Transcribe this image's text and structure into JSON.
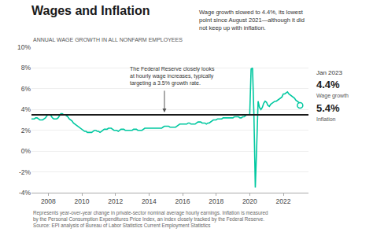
{
  "chart_data": {
    "type": "line",
    "title": "Wages and Inflation",
    "subtitle": "ANNUAL WAGE GROWTH IN ALL NONFARM EMPLOYEES",
    "annotations": [
      "Wage growth slowed to 4.4%, its lowest\npoint since August 2021—although it did\nnot keep up with inflation.",
      "The Federal Reserve closely looks\nat hourly wage increases, typically\ntargeting a 3.5% growth rate.",
      "Jan 2023",
      "4.4%",
      "Wage growth",
      "5.4%",
      "Inflation",
      "Represents year-over-year change in private-sector nominal average hourly earnings. Inflation is measured\nby the Personal Consumption Expenditures Price Index, an index closely tracked by the Federal Reserve.\nSource: EPI analysis of Bureau of Labor Statistics Current Employment Statistics"
    ],
    "reference_line": {
      "value": 3.5,
      "color": "#1a1a1a"
    },
    "xlim": [
      2007.0,
      2023.5
    ],
    "xticks": [
      2008,
      2010,
      2012,
      2014,
      2016,
      2018,
      2020,
      2022
    ],
    "ylim": [
      -4,
      10
    ],
    "yticks": [
      {
        "value": -4,
        "label": "-4%"
      },
      {
        "value": -2,
        "label": "-2%"
      },
      {
        "value": 0,
        "label": "0%"
      },
      {
        "value": 2,
        "label": "2%"
      },
      {
        "value": 4,
        "label": "4%"
      },
      {
        "value": 6,
        "label": "6%"
      },
      {
        "value": 8,
        "label": "8%"
      },
      {
        "value": 10,
        "label": "10%"
      }
    ],
    "grid": true,
    "x": [
      2007.0,
      2007.083,
      2007.167,
      2007.25,
      2007.333,
      2007.417,
      2007.5,
      2007.583,
      2007.667,
      2007.75,
      2007.833,
      2007.917,
      2008.0,
      2008.083,
      2008.167,
      2008.25,
      2008.333,
      2008.417,
      2008.5,
      2008.583,
      2008.667,
      2008.75,
      2008.833,
      2008.917,
      2009.0,
      2009.083,
      2009.167,
      2009.25,
      2009.333,
      2009.417,
      2009.5,
      2009.583,
      2009.667,
      2009.75,
      2009.833,
      2009.917,
      2010.0,
      2010.083,
      2010.167,
      2010.25,
      2010.333,
      2010.417,
      2010.5,
      2010.583,
      2010.667,
      2010.75,
      2010.833,
      2010.917,
      2011.0,
      2011.083,
      2011.167,
      2011.25,
      2011.333,
      2011.417,
      2011.5,
      2011.583,
      2011.667,
      2011.75,
      2011.833,
      2011.917,
      2012.0,
      2012.083,
      2012.167,
      2012.25,
      2012.333,
      2012.417,
      2012.5,
      2012.583,
      2012.667,
      2012.75,
      2012.833,
      2012.917,
      2013.0,
      2013.083,
      2013.167,
      2013.25,
      2013.333,
      2013.417,
      2013.5,
      2013.583,
      2013.667,
      2013.75,
      2013.833,
      2013.917,
      2014.0,
      2014.083,
      2014.167,
      2014.25,
      2014.333,
      2014.417,
      2014.5,
      2014.583,
      2014.667,
      2014.75,
      2014.833,
      2014.917,
      2015.0,
      2015.083,
      2015.167,
      2015.25,
      2015.333,
      2015.417,
      2015.5,
      2015.583,
      2015.667,
      2015.75,
      2015.833,
      2015.917,
      2016.0,
      2016.083,
      2016.167,
      2016.25,
      2016.333,
      2016.417,
      2016.5,
      2016.583,
      2016.667,
      2016.75,
      2016.833,
      2016.917,
      2017.0,
      2017.083,
      2017.167,
      2017.25,
      2017.333,
      2017.417,
      2017.5,
      2017.583,
      2017.667,
      2017.75,
      2017.833,
      2017.917,
      2018.0,
      2018.083,
      2018.167,
      2018.25,
      2018.333,
      2018.417,
      2018.5,
      2018.583,
      2018.667,
      2018.75,
      2018.833,
      2018.917,
      2019.0,
      2019.083,
      2019.167,
      2019.25,
      2019.333,
      2019.417,
      2019.5,
      2019.583,
      2019.667,
      2019.75,
      2019.833,
      2019.917,
      2020.0,
      2020.083,
      2020.167,
      2020.25,
      2020.333,
      2020.417,
      2020.5,
      2020.583,
      2020.667,
      2020.75,
      2020.833,
      2020.917,
      2021.0,
      2021.083,
      2021.167,
      2021.25,
      2021.333,
      2021.417,
      2021.5,
      2021.583,
      2021.667,
      2021.75,
      2021.833,
      2021.917,
      2022.0,
      2022.083,
      2022.167,
      2022.25,
      2022.333,
      2022.417,
      2022.5,
      2022.583,
      2022.667,
      2022.75,
      2022.833,
      2022.917,
      2023.0
    ],
    "series": [
      {
        "color": "#00C8A0",
        "values": [
          3.1,
          3.1,
          3.1,
          3.2,
          3.2,
          3.1,
          3.0,
          3.0,
          3.0,
          3.1,
          3.2,
          3.4,
          3.5,
          3.5,
          3.4,
          3.2,
          3.1,
          3.1,
          3.1,
          3.2,
          3.4,
          3.6,
          3.6,
          3.5,
          3.5,
          3.4,
          3.3,
          3.1,
          3.0,
          2.9,
          2.7,
          2.6,
          2.5,
          2.4,
          2.3,
          2.2,
          2.1,
          2.0,
          1.9,
          1.9,
          1.8,
          1.8,
          1.8,
          1.8,
          1.9,
          2.0,
          2.0,
          1.9,
          1.9,
          1.8,
          1.9,
          2.0,
          2.1,
          2.1,
          2.1,
          2.2,
          2.2,
          2.2,
          2.1,
          2.0,
          2.0,
          2.0,
          1.9,
          2.0,
          2.1,
          2.1,
          2.1,
          2.0,
          2.0,
          2.0,
          2.0,
          2.0,
          2.0,
          2.1,
          2.1,
          2.1,
          2.0,
          2.0,
          2.0,
          2.0,
          2.1,
          2.2,
          2.2,
          2.2,
          2.2,
          2.2,
          2.2,
          2.2,
          2.2,
          2.2,
          2.2,
          2.2,
          2.2,
          2.2,
          2.3,
          2.4,
          2.4,
          2.4,
          2.4,
          2.3,
          2.3,
          2.3,
          2.3,
          2.3,
          2.4,
          2.5,
          2.6,
          2.6,
          2.6,
          2.6,
          2.6,
          2.6,
          2.7,
          2.7,
          2.6,
          2.6,
          2.6,
          2.6,
          2.7,
          2.8,
          2.8,
          2.8,
          2.7,
          2.7,
          2.7,
          2.6,
          2.7,
          2.7,
          2.8,
          2.9,
          3.0,
          3.0,
          3.0,
          3.1,
          3.1,
          3.1,
          3.1,
          3.2,
          3.2,
          3.2,
          3.2,
          3.2,
          3.2,
          3.2,
          3.2,
          3.3,
          3.3,
          3.3,
          3.3,
          3.2,
          3.2,
          3.3,
          3.3,
          3.4,
          3.5,
          3.5,
          3.5,
          7.9,
          8.0,
          3.5,
          -3.5,
          0.5,
          4.8,
          4.2,
          4.0,
          4.2,
          4.6,
          4.8,
          4.7,
          4.4,
          4.3,
          4.5,
          4.6,
          4.7,
          4.8,
          4.8,
          4.9,
          5.0,
          5.1,
          5.2,
          5.5,
          5.5,
          5.6,
          5.7,
          5.5,
          5.4,
          5.3,
          5.2,
          5.1,
          4.9,
          4.8,
          4.7,
          4.4
        ]
      }
    ]
  }
}
